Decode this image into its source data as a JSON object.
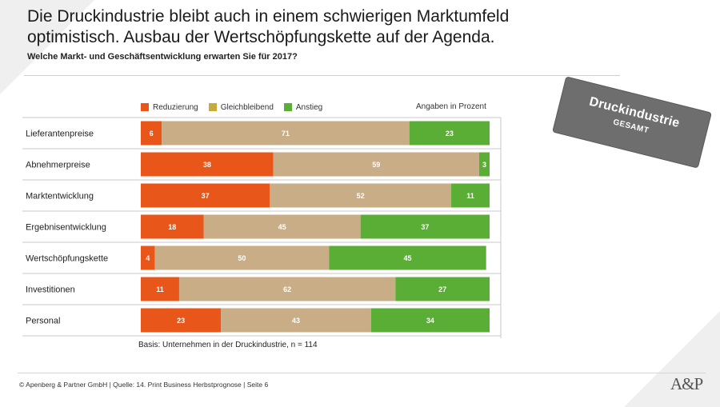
{
  "header": {
    "title_line1": "Die Druckindustrie bleibt  auch in einem schwierigen Marktumfeld",
    "title_line2": "optimistisch. Ausbau der Wertschöpfungskette auf der Agenda.",
    "subtitle": "Welche Markt- und Geschäftsentwicklung  erwarten Sie für 2017?"
  },
  "badge": {
    "title": "Druckindustrie",
    "subtitle": "GESAMT"
  },
  "colors": {
    "reduzierung": "#e8561a",
    "gleichbleibend": "#c9ad86",
    "anstieg": "#5aad35",
    "badge": "#6e6e6e"
  },
  "chart_data": {
    "type": "bar",
    "orientation": "horizontal",
    "stacked": true,
    "unit_note": "Angaben in Prozent",
    "categories": [
      "Lieferantenpreise",
      "Abnehmerpreise",
      "Marktentwicklung",
      "Ergebnisentwicklung",
      "Wertschöpfungskette",
      "Investitionen",
      "Personal"
    ],
    "series": [
      {
        "name": "Reduzierung",
        "values": [
          6,
          38,
          37,
          18,
          4,
          11,
          23
        ]
      },
      {
        "name": "Gleichbleibend",
        "values": [
          71,
          59,
          52,
          45,
          50,
          62,
          43
        ]
      },
      {
        "name": "Anstieg",
        "values": [
          23,
          3,
          11,
          37,
          45,
          27,
          34
        ]
      }
    ],
    "xlim": [
      0,
      100
    ],
    "legend_position": "top",
    "grid": false
  },
  "note": "Basis: Unternehmen in der Druckindustrie, n = 114",
  "footer": "© Apenberg & Partner GmbH  |  Quelle: 14. Print Business Herbstprognose  |  Seite 6",
  "logo": "A&P"
}
